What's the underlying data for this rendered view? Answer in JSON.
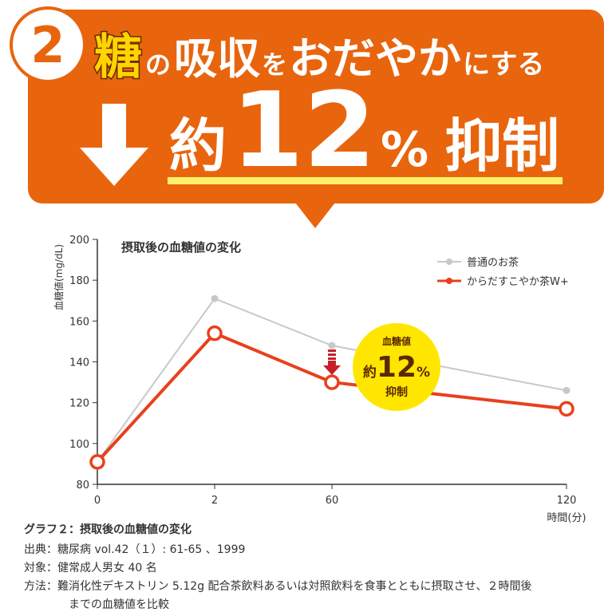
{
  "header": {
    "number": "2",
    "line1": [
      "糖",
      "の",
      "吸収",
      "を",
      "おだやか",
      "にする"
    ],
    "line2": [
      "約",
      "12",
      "%",
      "抑制"
    ]
  },
  "chart_data": {
    "type": "line",
    "title": "摂取後の血糖値の変化",
    "y_label": "血糖値(mg/dL)",
    "x_label": "時間(分)",
    "categories": [
      "0",
      "2",
      "60",
      "120"
    ],
    "series": [
      {
        "name": "普通のお茶",
        "color": "#c8c8c8",
        "values": [
          91,
          171,
          148,
          126
        ]
      },
      {
        "name": "からだすこやか茶W+",
        "color": "#e8401c",
        "values": [
          91,
          154,
          130,
          117
        ]
      }
    ],
    "ylim": [
      80,
      200
    ],
    "yticks": [
      80,
      100,
      120,
      140,
      160,
      180,
      200
    ],
    "annotation": [
      "血糖値",
      "約",
      "12",
      "%",
      "抑制"
    ]
  },
  "notes": {
    "caption": "グラフ２：摂取後の血糖値の変化",
    "lines": [
      "出典：糖尿病 vol.42（１）: 61-65 、1999",
      "対象：健常成人男女 40 名",
      "方法：難消化性デキストリン 5.12g 配合茶飲料あるいは対照飲料を食事とともに摂取させ、２時間後",
      "までの血糖値を比較"
    ]
  }
}
